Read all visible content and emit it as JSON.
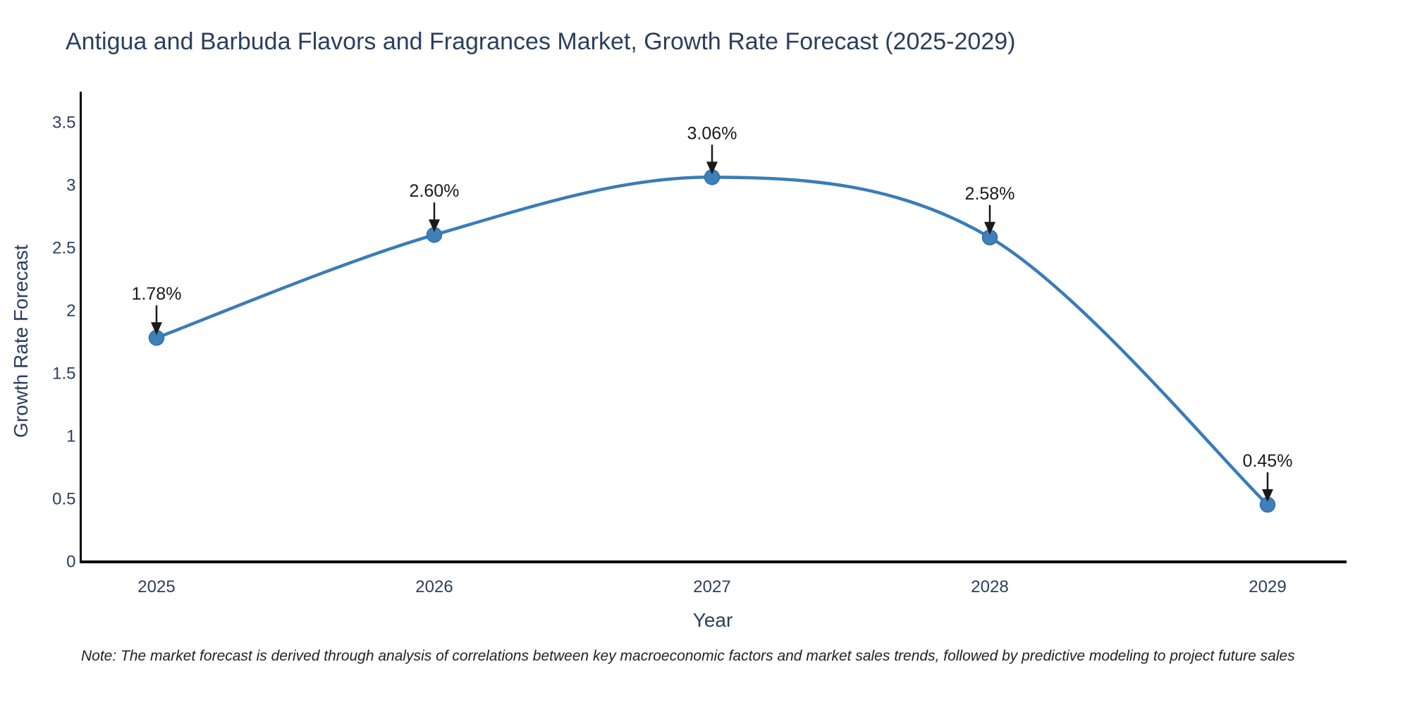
{
  "chart_data": {
    "type": "line",
    "title": "Antigua and Barbuda Flavors and Fragrances Market, Growth Rate Forecast (2025-2029)",
    "xlabel": "Year",
    "ylabel": "Growth Rate Forecast",
    "categories": [
      "2025",
      "2026",
      "2027",
      "2028",
      "2029"
    ],
    "series": [
      {
        "name": "Growth Rate Forecast",
        "values": [
          1.78,
          2.6,
          3.06,
          2.58,
          0.45
        ]
      }
    ],
    "values": [
      1.78,
      2.6,
      3.06,
      2.58,
      0.45
    ],
    "point_labels": [
      "1.78%",
      "2.60%",
      "3.06%",
      "2.58%",
      "0.45%"
    ],
    "yticks": [
      0,
      0.5,
      1,
      1.5,
      2,
      2.5,
      3,
      3.5
    ],
    "ytick_labels": [
      "0",
      "0.5",
      "1",
      "1.5",
      "2",
      "2.5",
      "3",
      "3.5"
    ],
    "ylim": [
      0,
      3.5
    ],
    "line_shape": "spline",
    "grid": false,
    "legend": "none",
    "note": "Note: The market forecast is derived through analysis of correlations between key macroeconomic factors and market sales trends, followed by predictive modeling to project future sales",
    "colors": {
      "line": "#3a7cb8",
      "marker": "#3f7fba",
      "marker_edge": "#2e6fa8",
      "annotation": "#1a1a1a",
      "axis": "#000000",
      "text": "#2a3f5f",
      "background": "#ffffff"
    }
  }
}
